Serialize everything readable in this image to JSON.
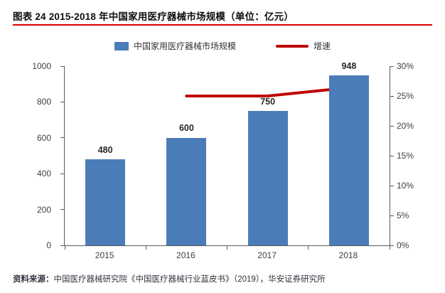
{
  "title": "图表 24 2015-2018 年中国家用医疗器械市场规模（单位：亿元）",
  "source": {
    "label": "资料来源：",
    "text": "中国医疗器械研究院《中国医疗器械行业蓝皮书》（2019），华安证券研究所"
  },
  "colors": {
    "bar": "#4a7cb8",
    "line": "#c00000",
    "title_rule": "#d90000",
    "axis": "#595959",
    "text": "#404040"
  },
  "legend": {
    "bar_label": "中国家用医疗器械市场规模",
    "line_label": "增速"
  },
  "chart_data": {
    "type": "bar",
    "title": "图表 24 2015-2018 年中国家用医疗器械市场规模（单位：亿元）",
    "categories": [
      "2015",
      "2016",
      "2017",
      "2018"
    ],
    "series": [
      {
        "name": "中国家用医疗器械市场规模",
        "type": "bar",
        "axis": "left",
        "values": [
          480,
          600,
          750,
          948
        ]
      },
      {
        "name": "增速",
        "type": "line",
        "axis": "right",
        "unit": "%",
        "values": [
          null,
          25,
          25,
          26.4
        ]
      }
    ],
    "data_labels": [
      "480",
      "600",
      "750",
      "948"
    ],
    "left_axis": {
      "min": 0,
      "max": 1000,
      "ticks": [
        0,
        200,
        400,
        600,
        800,
        1000
      ]
    },
    "right_axis": {
      "min": 0,
      "max": 30,
      "ticks": [
        "0%",
        "5%",
        "10%",
        "15%",
        "20%",
        "25%",
        "30%"
      ],
      "tick_values": [
        0,
        5,
        10,
        15,
        20,
        25,
        30
      ]
    },
    "legend_position": "top",
    "grid": false
  }
}
